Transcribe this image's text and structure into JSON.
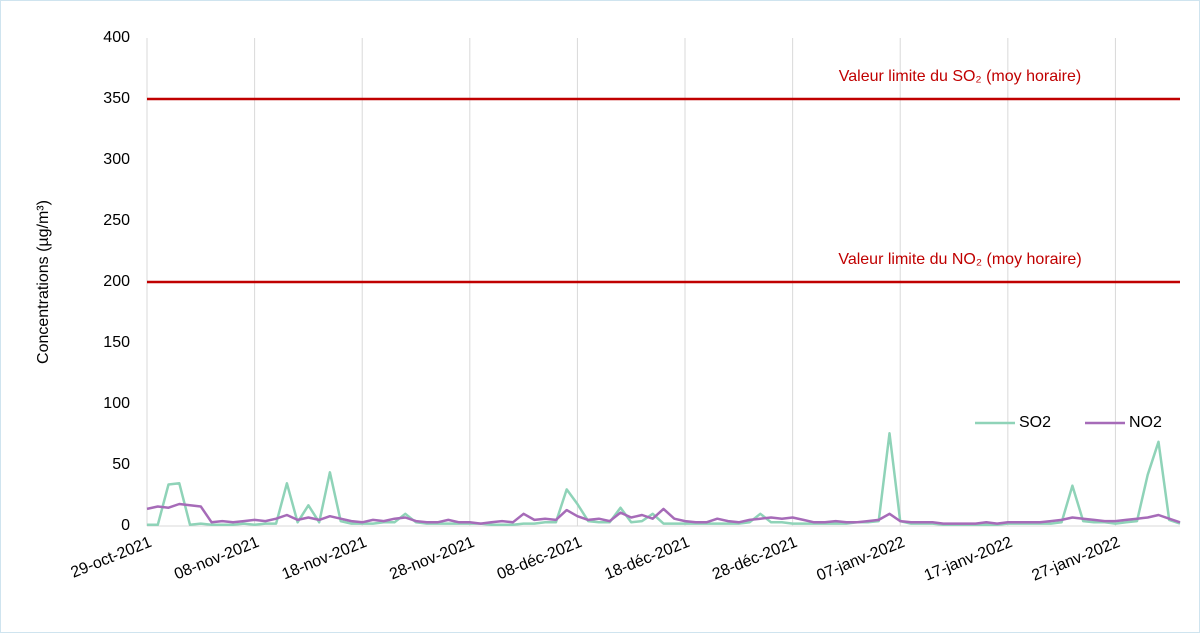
{
  "chart_data": {
    "type": "line",
    "ylabel": "Concentrations (µg/m³)",
    "x": [
      "2021-10-29",
      "2021-10-30",
      "2021-10-31",
      "2021-11-01",
      "2021-11-02",
      "2021-11-03",
      "2021-11-04",
      "2021-11-05",
      "2021-11-06",
      "2021-11-07",
      "2021-11-08",
      "2021-11-09",
      "2021-11-10",
      "2021-11-11",
      "2021-11-12",
      "2021-11-13",
      "2021-11-14",
      "2021-11-15",
      "2021-11-16",
      "2021-11-17",
      "2021-11-18",
      "2021-11-19",
      "2021-11-20",
      "2021-11-21",
      "2021-11-22",
      "2021-11-23",
      "2021-11-24",
      "2021-11-25",
      "2021-11-26",
      "2021-11-27",
      "2021-11-28",
      "2021-11-29",
      "2021-11-30",
      "2021-12-01",
      "2021-12-02",
      "2021-12-03",
      "2021-12-04",
      "2021-12-05",
      "2021-12-06",
      "2021-12-07",
      "2021-12-08",
      "2021-12-09",
      "2021-12-10",
      "2021-12-11",
      "2021-12-12",
      "2021-12-13",
      "2021-12-14",
      "2021-12-15",
      "2021-12-16",
      "2021-12-17",
      "2021-12-18",
      "2021-12-19",
      "2021-12-20",
      "2021-12-21",
      "2021-12-22",
      "2021-12-23",
      "2021-12-24",
      "2021-12-25",
      "2021-12-26",
      "2021-12-27",
      "2021-12-28",
      "2021-12-29",
      "2021-12-30",
      "2021-12-31",
      "2022-01-01",
      "2022-01-02",
      "2022-01-03",
      "2022-01-04",
      "2022-01-05",
      "2022-01-06",
      "2022-01-07",
      "2022-01-08",
      "2022-01-09",
      "2022-01-10",
      "2022-01-11",
      "2022-01-12",
      "2022-01-13",
      "2022-01-14",
      "2022-01-15",
      "2022-01-16",
      "2022-01-17",
      "2022-01-18",
      "2022-01-19",
      "2022-01-20",
      "2022-01-21",
      "2022-01-22",
      "2022-01-23",
      "2022-01-24",
      "2022-01-25",
      "2022-01-26",
      "2022-01-27",
      "2022-01-28",
      "2022-01-29",
      "2022-01-30",
      "2022-01-31",
      "2022-02-01",
      "2022-02-02"
    ],
    "series": [
      {
        "name": "SO2",
        "color": "#8fd3b8",
        "values": [
          1,
          1,
          34,
          35,
          1,
          2,
          1,
          1,
          1,
          2,
          1,
          2,
          2,
          35,
          3,
          17,
          3,
          44,
          4,
          2,
          2,
          2,
          3,
          3,
          10,
          3,
          2,
          2,
          2,
          2,
          2,
          2,
          1,
          1,
          1,
          2,
          2,
          3,
          3,
          30,
          18,
          4,
          3,
          3,
          15,
          3,
          4,
          10,
          2,
          2,
          2,
          2,
          2,
          2,
          2,
          2,
          3,
          10,
          3,
          3,
          2,
          2,
          2,
          2,
          2,
          2,
          3,
          3,
          4,
          76,
          4,
          2,
          2,
          2,
          1,
          1,
          1,
          1,
          1,
          1,
          2,
          2,
          2,
          2,
          2,
          3,
          33,
          4,
          3,
          3,
          2,
          3,
          4,
          42,
          69,
          5,
          2
        ]
      },
      {
        "name": "NO2",
        "color": "#a66bb8",
        "values": [
          14,
          16,
          15,
          18,
          17,
          16,
          3,
          4,
          3,
          4,
          5,
          4,
          6,
          9,
          5,
          7,
          5,
          8,
          6,
          4,
          3,
          5,
          4,
          6,
          7,
          4,
          3,
          3,
          5,
          3,
          3,
          2,
          3,
          4,
          3,
          10,
          5,
          6,
          5,
          13,
          8,
          5,
          6,
          4,
          11,
          7,
          9,
          6,
          14,
          6,
          4,
          3,
          3,
          6,
          4,
          3,
          5,
          6,
          7,
          6,
          7,
          5,
          3,
          3,
          4,
          3,
          3,
          4,
          5,
          10,
          4,
          3,
          3,
          3,
          2,
          2,
          2,
          2,
          3,
          2,
          3,
          3,
          3,
          3,
          4,
          5,
          7,
          6,
          5,
          4,
          4,
          5,
          6,
          7,
          9,
          6,
          3
        ]
      }
    ],
    "xlim": [
      "2021-10-29",
      "2022-02-02"
    ],
    "xticks": [
      {
        "value": "2021-10-29",
        "label": "29-oct-2021"
      },
      {
        "value": "2021-11-08",
        "label": "08-nov-2021"
      },
      {
        "value": "2021-11-18",
        "label": "18-nov-2021"
      },
      {
        "value": "2021-11-28",
        "label": "28-nov-2021"
      },
      {
        "value": "2021-12-08",
        "label": "08-déc-2021"
      },
      {
        "value": "2021-12-18",
        "label": "18-déc-2021"
      },
      {
        "value": "2021-12-28",
        "label": "28-déc-2021"
      },
      {
        "value": "2022-01-07",
        "label": "07-janv-2022"
      },
      {
        "value": "2022-01-17",
        "label": "17-janv-2022"
      },
      {
        "value": "2022-01-27",
        "label": "27-janv-2022"
      }
    ],
    "ylim": [
      0,
      400
    ],
    "yticks": [
      0,
      50,
      100,
      150,
      200,
      250,
      300,
      350,
      400
    ],
    "reference_lines": [
      {
        "value": 350,
        "label": "Valeur limite du SO₂ (moy horaire)",
        "color": "#c00000"
      },
      {
        "value": 200,
        "label": "Valeur limite du NO₂ (moy horaire)",
        "color": "#c00000"
      }
    ],
    "grid": "x",
    "legend": "right"
  }
}
